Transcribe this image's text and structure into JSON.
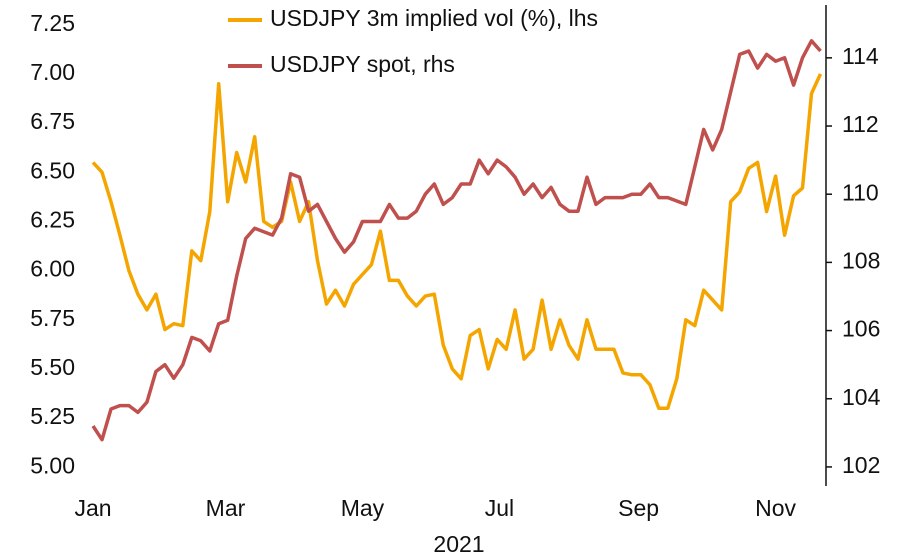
{
  "chart_data": {
    "type": "line",
    "legend": "top",
    "xlabel": "2021",
    "x": [
      0,
      4,
      8,
      12,
      16,
      20,
      24,
      28,
      32,
      36,
      40,
      44,
      48,
      52,
      56,
      60,
      64,
      68,
      72,
      76,
      80,
      84,
      88,
      92,
      96,
      100,
      104,
      108,
      112,
      116,
      120,
      124,
      128,
      132,
      136,
      140,
      144,
      148,
      152,
      156,
      160,
      164,
      168,
      172,
      176,
      180,
      184,
      188,
      192,
      196,
      200,
      204,
      208,
      212,
      216,
      220,
      224,
      228,
      232,
      236,
      240,
      244,
      248,
      252,
      256,
      260,
      264,
      268,
      272,
      276,
      280,
      284,
      288,
      292,
      296,
      300,
      304,
      308,
      312,
      316,
      320,
      324
    ],
    "xlim": [
      0,
      326
    ],
    "xticks": [
      {
        "value": 0,
        "label": "Jan"
      },
      {
        "value": 59,
        "label": "Mar"
      },
      {
        "value": 120,
        "label": "May"
      },
      {
        "value": 181,
        "label": "Jul"
      },
      {
        "value": 243,
        "label": "Sep"
      },
      {
        "value": 304,
        "label": "Nov"
      }
    ],
    "ylim": [
      4.91,
      7.35
    ],
    "yticks": [
      {
        "value": 5,
        "label": "5.00"
      },
      5.25,
      {
        "value": 5.5,
        "label": "5.50"
      },
      5.75,
      {
        "value": 6,
        "label": "6.00"
      },
      6.25,
      {
        "value": 6.5,
        "label": "6.50"
      },
      6.75,
      {
        "value": 7,
        "label": "7.00"
      },
      7.25
    ],
    "y2lim": [
      101.47,
      115.55
    ],
    "y2ticks": [
      102,
      104,
      106,
      108,
      110,
      112,
      114
    ],
    "series": [
      {
        "name": "USDJPY 3m implied vol (%), lhs",
        "color": "#f5a500",
        "values": [
          6.55,
          6.5,
          6.35,
          6.18,
          6.0,
          5.88,
          5.8,
          5.88,
          5.7,
          5.73,
          5.72,
          6.1,
          6.05,
          6.3,
          6.95,
          6.35,
          6.6,
          6.45,
          6.68,
          6.25,
          6.22,
          6.25,
          6.45,
          6.25,
          6.35,
          6.05,
          5.83,
          5.9,
          5.82,
          5.93,
          5.98,
          6.03,
          6.2,
          5.95,
          5.95,
          5.87,
          5.82,
          5.87,
          5.88,
          5.62,
          5.5,
          5.45,
          5.67,
          5.7,
          5.5,
          5.65,
          5.6,
          5.8,
          5.55,
          5.6,
          5.85,
          5.6,
          5.75,
          5.62,
          5.55,
          5.75,
          5.6,
          5.6,
          5.6,
          5.48,
          5.47,
          5.47,
          5.42,
          5.3,
          5.3,
          5.45,
          5.75,
          5.72,
          5.9,
          5.85,
          5.8,
          6.35,
          6.4,
          6.52,
          6.55,
          6.3,
          6.48,
          6.18,
          6.38,
          6.42,
          6.9,
          7.0
        ]
      },
      {
        "name": "USDJPY spot, rhs",
        "color": "#c0504d",
        "axis": "y2",
        "values": [
          103.2,
          102.8,
          103.7,
          103.8,
          103.8,
          103.6,
          103.9,
          104.8,
          105.0,
          104.6,
          105.0,
          105.8,
          105.7,
          105.4,
          106.2,
          106.3,
          107.6,
          108.7,
          109.0,
          108.9,
          108.8,
          109.3,
          110.6,
          110.5,
          109.5,
          109.7,
          109.2,
          108.7,
          108.3,
          108.6,
          109.2,
          109.2,
          109.2,
          109.7,
          109.3,
          109.3,
          109.5,
          110.0,
          110.3,
          109.7,
          109.9,
          110.3,
          110.3,
          111.0,
          110.6,
          111.0,
          110.8,
          110.5,
          110.0,
          110.3,
          109.9,
          110.2,
          109.7,
          109.5,
          109.5,
          110.5,
          109.7,
          109.9,
          109.9,
          109.9,
          110.0,
          110.0,
          110.3,
          109.9,
          109.9,
          109.8,
          109.7,
          110.8,
          111.9,
          111.3,
          111.9,
          113.0,
          114.1,
          114.2,
          113.7,
          114.1,
          113.9,
          114.0,
          113.2,
          114.0,
          114.5,
          114.2
        ]
      }
    ]
  }
}
